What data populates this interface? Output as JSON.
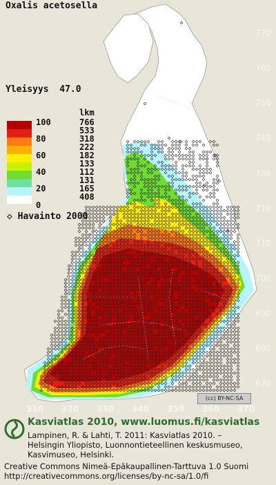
{
  "title": "Oxalis acetosella",
  "frequency": {
    "label": "Yleisyys",
    "value": "47.0"
  },
  "legend": {
    "count_header": "lkm",
    "rows": [
      {
        "value": "100",
        "count": "766",
        "color": "#b40000"
      },
      {
        "value": "",
        "count": "533",
        "color": "#e02010"
      },
      {
        "value": "80",
        "count": "318",
        "color": "#ff7a10"
      },
      {
        "value": "",
        "count": "222",
        "color": "#ffb000"
      },
      {
        "value": "60",
        "count": "182",
        "color": "#ffee00"
      },
      {
        "value": "",
        "count": "133",
        "color": "#c8f000"
      },
      {
        "value": "40",
        "count": "112",
        "color": "#70dc30"
      },
      {
        "value": "",
        "count": "131",
        "color": "#70e0a0"
      },
      {
        "value": "20",
        "count": "165",
        "color": "#b8f4ff"
      },
      {
        "value": "",
        "count": "408",
        "color": "#ffffff"
      },
      {
        "value": "0",
        "count": "",
        "color": "#ffffff"
      }
    ]
  },
  "observation": {
    "symbol": "◇",
    "label": "Havainto 2000"
  },
  "y_ticks": [
    "770",
    "760",
    "750",
    "740",
    "730",
    "720",
    "710",
    "700",
    "690",
    "680",
    "670"
  ],
  "x_ticks": [
    "310",
    "320",
    "330",
    "340",
    "350",
    "360",
    "370"
  ],
  "license_badge": "BY-NC-SA",
  "footer": {
    "headline": "Kasviatlas 2010, www.luomus.fi/kasviatlas",
    "citation_line1": "Lampinen, R. & Lahti, T. 2011: Kasviatlas 2010. –",
    "citation_line2": "Helsingin Yliopisto, Luonnontieteellinen keskusmuseo,",
    "citation_line3": "Kasvimuseo, Helsinki.",
    "license_line1": "Creative Commons Nimeä-Epäkaupallinen-Tarttuva 1.0 Suomi",
    "license_line2": "http://creativecommons.org/licenses/by-nc-sa/1.0/fi"
  },
  "colors": {
    "background": "#e8e6d8",
    "land": "#ffffff",
    "very_high": "#b40000",
    "high": "#e02010",
    "medium": "#ff7a10",
    "yellow": "#ffee00",
    "green": "#70dc30",
    "light_blue": "#b8f4ff"
  }
}
